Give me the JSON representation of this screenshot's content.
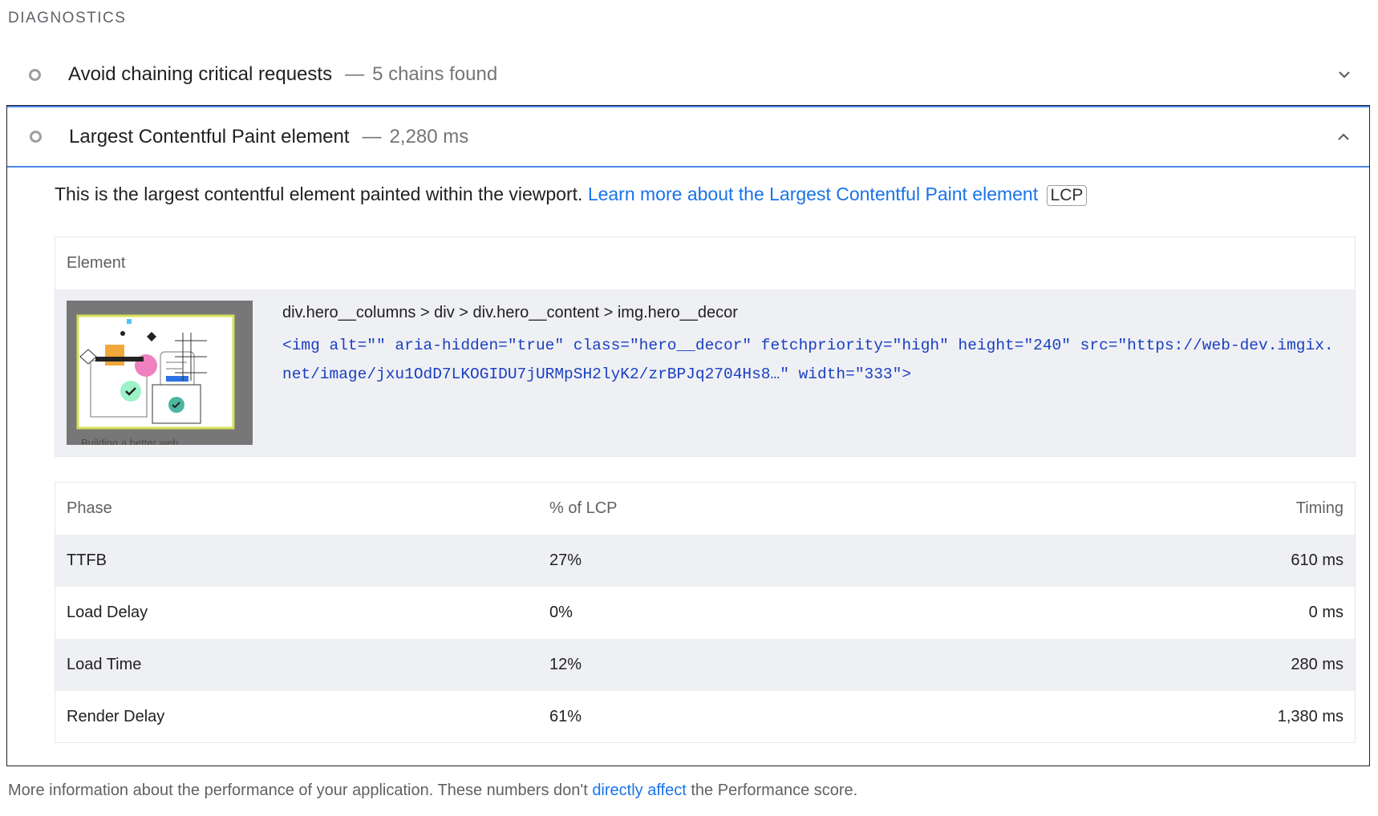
{
  "section": {
    "title": "DIAGNOSTICS"
  },
  "audits": [
    {
      "title": "Avoid chaining critical requests",
      "separator": "—",
      "value": "5 chains found",
      "expanded": false
    },
    {
      "title": "Largest Contentful Paint element",
      "separator": "—",
      "value": "2,280 ms",
      "expanded": true
    }
  ],
  "lcp": {
    "description": "This is the largest contentful element painted within the viewport.",
    "learn_more": "Learn more about the Largest Contentful Paint element",
    "badge": "LCP",
    "element_table": {
      "header": "Element",
      "thumbnail_caption": "Building a better web",
      "selector": "div.hero__columns > div > div.hero__content > img.hero__decor",
      "snippet": "<img alt=\"\" aria-hidden=\"true\" class=\"hero__decor\" fetchpriority=\"high\" height=\"240\" src=\"https://web-dev.imgix.net/image/jxu1OdD7LKOGIDU7jURMpSH2lyK2/zrBPJq2704Hs8…\" width=\"333\">"
    },
    "phase_table": {
      "headers": [
        "Phase",
        "% of LCP",
        "Timing"
      ],
      "rows": [
        {
          "phase": "TTFB",
          "percent": "27%",
          "timing": "610 ms"
        },
        {
          "phase": "Load Delay",
          "percent": "0%",
          "timing": "0 ms"
        },
        {
          "phase": "Load Time",
          "percent": "12%",
          "timing": "280 ms"
        },
        {
          "phase": "Render Delay",
          "percent": "61%",
          "timing": "1,380 ms"
        }
      ]
    }
  },
  "footer": {
    "before": "More information about the performance of your application. These numbers don't ",
    "link": "directly affect",
    "after": " the Performance score."
  },
  "colors": {
    "link": "#1a73e8",
    "code": "#1a3fc0",
    "focus_border": "#4a86e8",
    "row_alt": "#eff0f4"
  }
}
